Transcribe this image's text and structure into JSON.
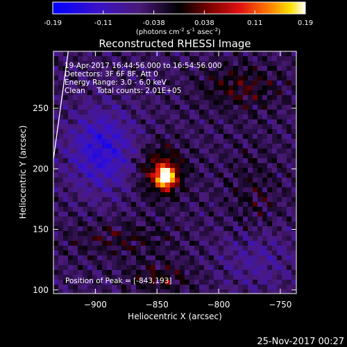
{
  "colorbar": {
    "ticks": [
      "-0.19",
      "-0.11",
      "-0.038",
      "0.038",
      "0.11",
      "0.19"
    ],
    "units_prefix": "(photons cm",
    "units_exp1": "-2",
    "units_mid": " s",
    "units_exp2": "-1",
    "units_mid2": " asec",
    "units_exp3": "-2",
    "units_suffix": ")"
  },
  "annotations": {
    "line1": "19-Apr-2017 16:44:56.000 to 16:54:56.000",
    "line2": "Detectors: 3F 6F 8F, Att 0",
    "line3": "Energy Range: 3.0 - 6.0 keV",
    "line4": "Clean     Total counts: 2.01E+05",
    "peak": "Position of Peak = [-843,193]"
  },
  "timestamp": "25-Nov-2017 00:27",
  "chart_data": {
    "type": "heatmap",
    "title": "Reconstructed RHESSI Image",
    "xlabel": "Heliocentric X (arcsec)",
    "ylabel": "Heliocentric Y (arcsec)",
    "xlim": [
      -934,
      -737
    ],
    "ylim": [
      97,
      297
    ],
    "x_ticks": [
      -900,
      -850,
      -800,
      -750
    ],
    "y_ticks": [
      100,
      150,
      200,
      250
    ],
    "color_range": [
      -0.19,
      0.19
    ],
    "colormap": "blue-purple-black-red-orange-yellow-white",
    "peak": [
      -843,
      193
    ],
    "limb_line": [
      [
        -934,
        208
      ],
      [
        -922,
        297
      ]
    ]
  }
}
